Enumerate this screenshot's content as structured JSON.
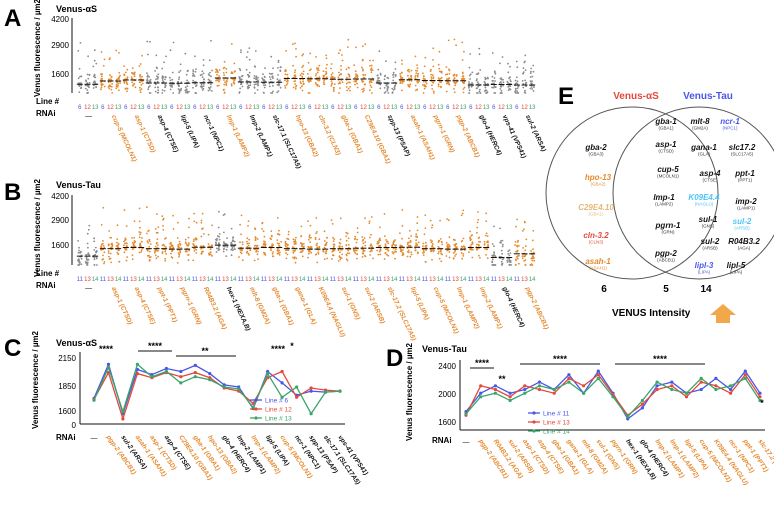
{
  "colors": {
    "orange": "#e58a2e",
    "gray": "#8a8a8a",
    "black": "#111111",
    "red": "#e24a3b",
    "blue": "#4a56e8",
    "green": "#3aa56a",
    "cyan": "#4fc3f7",
    "tan": "#e6b877"
  },
  "panelA": {
    "letter": "A",
    "title": "Venus-αS",
    "ylabel": "Venus fluorescence / µm2",
    "yticks": [
      "4200",
      "2900",
      "1600"
    ],
    "line_label": "Line #",
    "rnai_label": "RNAi",
    "rnai": [
      {
        "t": "—",
        "c": "black"
      },
      {
        "t": "cup-5 (MCOLN1)",
        "c": "orange"
      },
      {
        "t": "asp-1 (CTSD)",
        "c": "orange"
      },
      {
        "t": "asp-4 (CTSE)",
        "c": "black"
      },
      {
        "t": "lipl-5 (LIPA)",
        "c": "black"
      },
      {
        "t": "ncr-1 (NPC1)",
        "c": "black"
      },
      {
        "t": "lmp-1 (LAMP2)",
        "c": "orange"
      },
      {
        "t": "lmp-2 (LAMP1)",
        "c": "black"
      },
      {
        "t": "slc-17.1 (SLC17A5)",
        "c": "black"
      },
      {
        "t": "hpo-13 (GBA2)",
        "c": "orange"
      },
      {
        "t": "cln-3.2 (CLN3)",
        "c": "orange"
      },
      {
        "t": "gba-1 (GBA1)",
        "c": "orange"
      },
      {
        "t": "C29E4.10 (GBA1)",
        "c": "orange"
      },
      {
        "t": "spp-13 (PSAP)",
        "c": "black"
      },
      {
        "t": "asah-1 (ASAH1)",
        "c": "orange"
      },
      {
        "t": "pgrn-1 (GRN)",
        "c": "orange"
      },
      {
        "t": "pgp-2 (ABCB1)",
        "c": "orange"
      },
      {
        "t": "glo-4 (HERC4)",
        "c": "black"
      },
      {
        "t": "vps-41 (VPS41)",
        "c": "black"
      },
      {
        "t": "sul-2 (ARSA)",
        "c": "black"
      }
    ]
  },
  "panelB": {
    "letter": "B",
    "title": "Venus-Tau",
    "ylabel": "Venus fluorescence / µm2",
    "yticks": [
      "4200",
      "2900",
      "1600"
    ],
    "line_label": "Line #",
    "rnai_label": "RNAi",
    "rnai": [
      {
        "t": "—",
        "c": "black"
      },
      {
        "t": "asp-1 (CTSD)",
        "c": "orange"
      },
      {
        "t": "asp-4 (CTSE)",
        "c": "orange"
      },
      {
        "t": "ppt-1 (PPT1)",
        "c": "orange"
      },
      {
        "t": "pgrn-1 (GRN)",
        "c": "orange"
      },
      {
        "t": "R04B3.2 (AGA)",
        "c": "orange"
      },
      {
        "t": "hex-1 (HEXA,B)",
        "c": "black"
      },
      {
        "t": "mlt-8 (GM2A)",
        "c": "orange"
      },
      {
        "t": "gba-1 (GBA1)",
        "c": "orange"
      },
      {
        "t": "gana-1 (GLA)",
        "c": "orange"
      },
      {
        "t": "K09E4.4 (NAGLU)",
        "c": "orange"
      },
      {
        "t": "sul-1 (GNS)",
        "c": "orange"
      },
      {
        "t": "sul-2 (ARSB)",
        "c": "orange"
      },
      {
        "t": "slc-17.2 (SLC17A5)",
        "c": "orange"
      },
      {
        "t": "lipl-5 (LIPA)",
        "c": "orange"
      },
      {
        "t": "cup-5 (MCOLN1)",
        "c": "orange"
      },
      {
        "t": "lmp-1 (LAMP2)",
        "c": "orange"
      },
      {
        "t": "imp-2 (LAMP1)",
        "c": "orange"
      },
      {
        "t": "glo-4 (HERC4)",
        "c": "black"
      },
      {
        "t": "pgp-2 (ABCB1)",
        "c": "orange"
      }
    ]
  },
  "panelC": {
    "letter": "C",
    "title": "Venus-αS",
    "ylabel": "Venus fluorescence / µm2",
    "yticks": [
      "2150",
      "1850",
      "1600",
      "0"
    ],
    "rnai_label": "RNAi",
    "stars": [
      "****",
      "****",
      "**",
      "****",
      "*"
    ],
    "legend": [
      "Line # 6",
      "Line # 12",
      "Line # 13"
    ],
    "rnai": [
      {
        "t": "—",
        "c": "black"
      },
      {
        "t": "pgp-2 (ABCB1)",
        "c": "orange"
      },
      {
        "t": "sul-2 (ARSA)",
        "c": "black"
      },
      {
        "t": "asah-1 (ASAH1)",
        "c": "orange"
      },
      {
        "t": "asp-1 (CTSD)",
        "c": "orange"
      },
      {
        "t": "asp-4 (CTSE)",
        "c": "black"
      },
      {
        "t": "C29E4.10 (GBA1)",
        "c": "orange"
      },
      {
        "t": "gba-1 (GBA1)",
        "c": "orange"
      },
      {
        "t": "hpo-13 (GBA2)",
        "c": "orange"
      },
      {
        "t": "glo-4 (HERC4)",
        "c": "black"
      },
      {
        "t": "lmp-2 (LAMP1)",
        "c": "black"
      },
      {
        "t": "lmp-1 (LAMP2)",
        "c": "orange"
      },
      {
        "t": "lipl-5 (LIPA)",
        "c": "black"
      },
      {
        "t": "cup-5 (MCOLN1)",
        "c": "orange"
      },
      {
        "t": "ncr-1 (NPC1)",
        "c": "black"
      },
      {
        "t": "spp-13 (PSAP)",
        "c": "black"
      },
      {
        "t": "slc-17.1 (SLC17A5)",
        "c": "black"
      },
      {
        "t": "vps-41 (VPS41)",
        "c": "black"
      }
    ]
  },
  "panelD": {
    "letter": "D",
    "title": "Venus-Tau",
    "ylabel": "Venus fluorescence / µm2",
    "yticks": [
      "2400",
      "2000",
      "1600"
    ],
    "rnai_label": "RNAi",
    "stars": [
      "****",
      "**",
      "****",
      "****",
      "*"
    ],
    "legend": [
      "Line # 11",
      "Line # 13",
      "Line # 14"
    ],
    "rnai": [
      {
        "t": "—",
        "c": "black"
      },
      {
        "t": "pgp-2 (ABCB1)",
        "c": "orange"
      },
      {
        "t": "R04B3.2 (AGA)",
        "c": "orange"
      },
      {
        "t": "sul-2 (ARSB)",
        "c": "orange"
      },
      {
        "t": "asp-1 (CTSD)",
        "c": "orange"
      },
      {
        "t": "asp-4 (CTSE)",
        "c": "orange"
      },
      {
        "t": "gba-1 (GBA1)",
        "c": "orange"
      },
      {
        "t": "gana-1 (GLA)",
        "c": "orange"
      },
      {
        "t": "mlt-8 (GM2A)",
        "c": "orange"
      },
      {
        "t": "sul-1 (GNS)",
        "c": "orange"
      },
      {
        "t": "pgrn-1 (GRN)",
        "c": "orange"
      },
      {
        "t": "hex-1 (HEXA,B)",
        "c": "black"
      },
      {
        "t": "glo-4 (HERC4)",
        "c": "black"
      },
      {
        "t": "lmp-2 (LAMP1)",
        "c": "orange"
      },
      {
        "t": "lmp-1 (LAMP2)",
        "c": "orange"
      },
      {
        "t": "lipl-5 (LIPA)",
        "c": "orange"
      },
      {
        "t": "cup-5 (MCOLN1)",
        "c": "orange"
      },
      {
        "t": "K09E4.4 (NAGLU)",
        "c": "orange"
      },
      {
        "t": "ncr-1 (NPC1)",
        "c": "orange"
      },
      {
        "t": "ppt-1 (PPT1)",
        "c": "orange"
      },
      {
        "t": "slc-17.2 (SLC17A5)",
        "c": "orange"
      }
    ]
  },
  "panelE": {
    "letter": "E",
    "title_left": "Venus-αS",
    "title_right": "Venus-Tau",
    "left_genes": [
      {
        "g": "gba-2",
        "s": "(GBA3)",
        "c": "black"
      },
      {
        "g": "hpo-13",
        "s": "(GBA2)",
        "c": "orange"
      },
      {
        "g": "C29E4.10",
        "s": "(GBA1)",
        "c": "tan"
      },
      {
        "g": "cln-3.2",
        "s": "(CLN3)",
        "c": "red"
      },
      {
        "g": "asah-1",
        "s": "(ASAH1)",
        "c": "orange"
      }
    ],
    "mid_genes": [
      {
        "g": "gba-1",
        "s": "(GBA1)",
        "c": "black"
      },
      {
        "g": "asp-1",
        "s": "(CTSD)",
        "c": "black"
      },
      {
        "g": "cup-5",
        "s": "(MCOLN1)",
        "c": "black"
      },
      {
        "g": "lmp-1",
        "s": "(LAMP2)",
        "c": "black"
      },
      {
        "g": "pgrn-1",
        "s": "(GRN)",
        "c": "black"
      },
      {
        "g": "pgp-2",
        "s": "(ABCB1)",
        "c": "black"
      }
    ],
    "right_genes": [
      {
        "g": "mlt-8",
        "s": "(GM2A)",
        "c": "black"
      },
      {
        "g": "ncr-1",
        "s": "(NPC1)",
        "c": "blue"
      },
      {
        "g": "gana-1",
        "s": "(GLA)",
        "c": "black"
      },
      {
        "g": "slc17.2",
        "s": "(SLC17A5)",
        "c": "black"
      },
      {
        "g": "asp-4",
        "s": "(CTSE)",
        "c": "black"
      },
      {
        "g": "ppt-1",
        "s": "(PPT1)",
        "c": "black"
      },
      {
        "g": "K09E4.4",
        "s": "(NAGLU)",
        "c": "cyan"
      },
      {
        "g": "imp-2",
        "s": "(LAMP1)",
        "c": "black"
      },
      {
        "g": "sul-1",
        "s": "(GNS)",
        "c": "black"
      },
      {
        "g": "sul-2",
        "s": "(ARSB)",
        "c": "cyan"
      },
      {
        "g": "sul-2",
        "s": "(ARSB)",
        "c": "black"
      },
      {
        "g": "R04B3.2",
        "s": "(AGA)",
        "c": "black"
      },
      {
        "g": "lipl-3",
        "s": "(LIPA)",
        "c": "blue"
      },
      {
        "g": "lipl-5",
        "s": "(LIPA)",
        "c": "black"
      }
    ],
    "counts": [
      "6",
      "5",
      "14"
    ],
    "intensity_label": "VENUS Intensity"
  },
  "chart_data": [
    {
      "type": "scatter",
      "title": "Venus-αS",
      "ylabel": "Venus fluorescence / µm2",
      "ylim": [
        1300,
        4300
      ],
      "lines_per_group": [
        "6",
        "12",
        "13"
      ],
      "group_medians": [
        1650,
        1780,
        1820,
        1700,
        1690,
        1710,
        1900,
        1740,
        1730,
        1880,
        1870,
        1850,
        1860,
        1700,
        1830,
        1800,
        1790,
        1620,
        1640,
        1620
      ]
    },
    {
      "type": "scatter",
      "title": "Venus-Tau",
      "ylabel": "Venus fluorescence / µm2",
      "ylim": [
        1300,
        4300
      ],
      "lines_per_group": [
        "11",
        "13",
        "14"
      ],
      "group_medians": [
        1680,
        2000,
        2050,
        2000,
        1980,
        2060,
        2150,
        2020,
        2050,
        2000,
        1980,
        2000,
        2020,
        2050,
        2060,
        2000,
        1980,
        2050,
        1620,
        1780
      ]
    },
    {
      "type": "line",
      "title": "Venus-αS",
      "ylim": [
        1500,
        2200
      ],
      "series": [
        {
          "name": "Line # 6",
          "values": [
            1750,
            2080,
            1600,
            2030,
            1980,
            2040,
            2010,
            2070,
            1990,
            1880,
            1860,
            1650,
            2010,
            1900,
            1780,
            1820,
            1810,
            1820
          ]
        },
        {
          "name": "Line # 12",
          "values": [
            1740,
            2000,
            1550,
            1990,
            1950,
            2000,
            1960,
            2000,
            1950,
            1850,
            1820,
            1700,
            1950,
            2010,
            1760,
            1850,
            1830,
            1820
          ]
        },
        {
          "name": "Line # 13",
          "values": [
            1730,
            2050,
            1620,
            2080,
            1960,
            2010,
            1900,
            1960,
            1930,
            1860,
            1840,
            1660,
            1990,
            1760,
            1860,
            1600,
            1810,
            1820
          ]
        }
      ]
    },
    {
      "type": "line",
      "title": "Venus-Tau",
      "ylim": [
        1500,
        2450
      ],
      "series": [
        {
          "name": "Line # 11",
          "values": [
            1750,
            2000,
            2100,
            2000,
            2050,
            2150,
            2050,
            2250,
            2000,
            2300,
            2000,
            1650,
            1800,
            2100,
            2150,
            2000,
            2050,
            2200,
            2050,
            2300,
            2000
          ]
        },
        {
          "name": "Line # 13",
          "values": [
            1700,
            2100,
            2050,
            1950,
            2100,
            2050,
            2000,
            2200,
            2100,
            2250,
            1980,
            1700,
            1850,
            2050,
            2100,
            1950,
            2150,
            2100,
            2000,
            2250,
            1950
          ]
        },
        {
          "name": "Line # 14",
          "values": [
            1720,
            1950,
            2000,
            1900,
            2000,
            2100,
            2050,
            2150,
            2000,
            2200,
            1950,
            1680,
            1900,
            2150,
            2050,
            2000,
            2200,
            2050,
            2100,
            2200,
            1900
          ]
        }
      ]
    }
  ]
}
